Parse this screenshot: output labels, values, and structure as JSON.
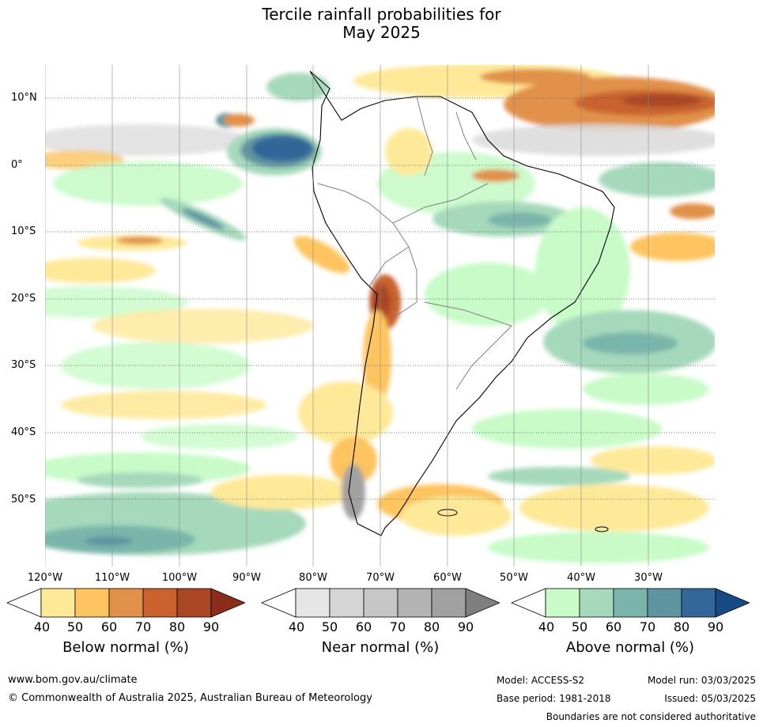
{
  "title": {
    "line1": "Tercile rainfall probabilities for",
    "line2": "May 2025"
  },
  "map": {
    "lat_labels": [
      "10°N",
      "0°",
      "10°S",
      "20°S",
      "30°S",
      "40°S",
      "50°S"
    ],
    "lat_values": [
      10,
      0,
      -10,
      -20,
      -30,
      -40,
      -50
    ],
    "lon_labels": [
      "120°W",
      "110°W",
      "100°W",
      "90°W",
      "80°W",
      "70°W",
      "60°W",
      "50°W",
      "40°W",
      "30°W"
    ],
    "lon_values": [
      -120,
      -110,
      -100,
      -90,
      -80,
      -70,
      -60,
      -50,
      -40,
      -30
    ],
    "extent": {
      "lon_min": -120,
      "lon_max": -20,
      "lat_min": -60,
      "lat_max": 15
    }
  },
  "colorbars": {
    "ticks": [
      "40",
      "50",
      "60",
      "70",
      "80",
      "90"
    ],
    "below": {
      "label": "Below normal (%)",
      "colors": [
        "#ffffff",
        "#fee999",
        "#fdc45f",
        "#e1914a",
        "#c9622f",
        "#a94725",
        "#8c2d1c"
      ]
    },
    "near": {
      "label": "Near normal (%)",
      "colors": [
        "#ffffff",
        "#e6e6e6",
        "#d5d5d5",
        "#c6c6c6",
        "#b3b3b3",
        "#a1a1a1",
        "#7f7f7f"
      ]
    },
    "above": {
      "label": "Above normal (%)",
      "colors": [
        "#ffffff",
        "#c8fbc8",
        "#a6d9bb",
        "#7ab5ab",
        "#5f95a1",
        "#336699",
        "#154a82"
      ]
    }
  },
  "footer": {
    "website": "www.bom.gov.au/climate",
    "copyright": "© Commonwealth of Australia 2025, Australian Bureau of Meteorology",
    "model": "Model: ACCESS-S2",
    "base_period": "Base period: 1981-2018",
    "model_run": "Model run: 03/03/2025",
    "issued": "Issued: 05/03/2025",
    "disclaimer": "Boundaries are not considered authoritative"
  }
}
